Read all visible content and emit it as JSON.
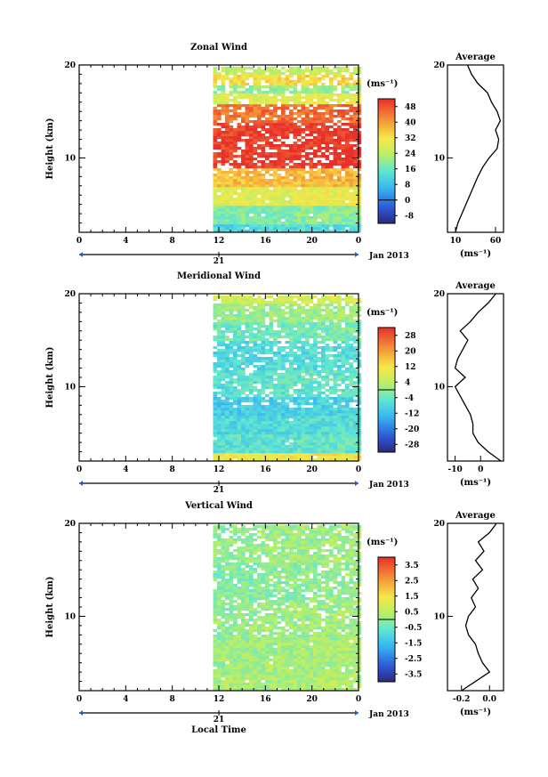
{
  "chart_data": [
    {
      "type": "heatmap",
      "title": "Zonal Wind",
      "ylabel": "Height (km)",
      "unit": "(ms⁻¹)",
      "y_ticks": [
        "10",
        "20"
      ],
      "ylim": [
        2,
        20
      ],
      "x_ticks": [
        "0",
        "4",
        "8",
        "12",
        "16",
        "20",
        "0"
      ],
      "xlim": [
        0,
        24
      ],
      "date_tick": "21",
      "date_label": "Jan 2013",
      "data_start_hour": 11.5,
      "colorbar_ticks": [
        "48",
        "40",
        "32",
        "24",
        "16",
        "8",
        "0",
        "-8"
      ],
      "colorbar_range": [
        -12,
        52
      ],
      "bands": [
        {
          "y0": 2,
          "y1": 3,
          "value": 12
        },
        {
          "y0": 3,
          "y1": 5,
          "value": 18
        },
        {
          "y0": 5,
          "y1": 7,
          "value": 28
        },
        {
          "y0": 7,
          "y1": 9,
          "value": 36
        },
        {
          "y0": 9,
          "y1": 14,
          "value": 50
        },
        {
          "y0": 14,
          "y1": 16,
          "value": 44
        },
        {
          "y0": 16,
          "y1": 17,
          "value": 28
        },
        {
          "y0": 17,
          "y1": 18,
          "value": 20
        },
        {
          "y0": 18,
          "y1": 19,
          "value": 32
        },
        {
          "y0": 19,
          "y1": 20,
          "value": 24
        }
      ],
      "profile": {
        "title": "Average",
        "x_ticks": [
          "10",
          "60"
        ],
        "xlim": [
          0,
          70
        ],
        "y_ticks": [
          "10",
          "20"
        ],
        "xlabel": "(ms⁻¹)",
        "points": [
          [
            10,
            2
          ],
          [
            13,
            3
          ],
          [
            18,
            4
          ],
          [
            23,
            5
          ],
          [
            28,
            6
          ],
          [
            33,
            7
          ],
          [
            38,
            8
          ],
          [
            44,
            9
          ],
          [
            52,
            10
          ],
          [
            62,
            11
          ],
          [
            64,
            12
          ],
          [
            60,
            13
          ],
          [
            66,
            14
          ],
          [
            62,
            15
          ],
          [
            55,
            16
          ],
          [
            50,
            17
          ],
          [
            38,
            18
          ],
          [
            30,
            19
          ],
          [
            25,
            20
          ]
        ]
      }
    },
    {
      "type": "heatmap",
      "title": "Meridional Wind",
      "ylabel": "Height (km)",
      "unit": "(ms⁻¹)",
      "y_ticks": [
        "10",
        "20"
      ],
      "ylim": [
        2,
        20
      ],
      "x_ticks": [
        "0",
        "4",
        "8",
        "12",
        "16",
        "20",
        "0"
      ],
      "xlim": [
        0,
        24
      ],
      "date_tick": "21",
      "date_label": "Jan 2013",
      "data_start_hour": 11.5,
      "colorbar_ticks": [
        "28",
        "20",
        "12",
        "4",
        "-4",
        "-12",
        "-20",
        "-28"
      ],
      "colorbar_range": [
        -32,
        32
      ],
      "bands": [
        {
          "y0": 2,
          "y1": 3,
          "value": 10
        },
        {
          "y0": 3,
          "y1": 5,
          "value": -6
        },
        {
          "y0": 5,
          "y1": 7,
          "value": -8
        },
        {
          "y0": 7,
          "y1": 9,
          "value": -10
        },
        {
          "y0": 9,
          "y1": 12,
          "value": -6
        },
        {
          "y0": 12,
          "y1": 15,
          "value": -8
        },
        {
          "y0": 15,
          "y1": 17,
          "value": -4
        },
        {
          "y0": 17,
          "y1": 19,
          "value": 0
        },
        {
          "y0": 19,
          "y1": 20,
          "value": 6
        }
      ],
      "profile": {
        "title": "Average",
        "x_ticks": [
          "-10",
          "0"
        ],
        "xlim": [
          -13,
          9
        ],
        "y_ticks": [
          "10",
          "20"
        ],
        "xlabel": "(ms⁻¹)",
        "points": [
          [
            8,
            2
          ],
          [
            3,
            3
          ],
          [
            -1,
            4
          ],
          [
            -3,
            5
          ],
          [
            -3,
            6
          ],
          [
            -4,
            7
          ],
          [
            -6,
            8
          ],
          [
            -8,
            9
          ],
          [
            -10,
            10
          ],
          [
            -6,
            11
          ],
          [
            -10,
            12
          ],
          [
            -9,
            13
          ],
          [
            -7,
            14
          ],
          [
            -5,
            15
          ],
          [
            -8,
            16
          ],
          [
            -4,
            17
          ],
          [
            -1,
            18
          ],
          [
            3,
            19
          ],
          [
            6,
            20
          ]
        ]
      }
    },
    {
      "type": "heatmap",
      "title": "Vertical Wind",
      "ylabel": "Height (km)",
      "unit": "(ms⁻¹)",
      "y_ticks": [
        "10",
        "20"
      ],
      "ylim": [
        2,
        20
      ],
      "x_ticks": [
        "0",
        "4",
        "8",
        "12",
        "16",
        "20",
        "0"
      ],
      "xlim": [
        0,
        24
      ],
      "xlabel": "Local Time",
      "date_tick": "21",
      "date_label": "Jan 2013",
      "data_start_hour": 11.5,
      "colorbar_ticks": [
        "3.5",
        "2.5",
        "1.5",
        "0.5",
        "-0.5",
        "-1.5",
        "-2.5",
        "-3.5"
      ],
      "colorbar_range": [
        -4,
        4
      ],
      "bands": [
        {
          "y0": 2,
          "y1": 4,
          "value": 0.2
        },
        {
          "y0": 4,
          "y1": 8,
          "value": 0.1
        },
        {
          "y0": 8,
          "y1": 12,
          "value": 0.0
        },
        {
          "y0": 12,
          "y1": 16,
          "value": -0.2
        },
        {
          "y0": 16,
          "y1": 20,
          "value": 0.0
        }
      ],
      "profile": {
        "title": "Average",
        "x_ticks": [
          "-0.2",
          "0.0"
        ],
        "xlim": [
          -0.3,
          0.1
        ],
        "y_ticks": [
          "10",
          "20"
        ],
        "xlabel": "(ms⁻¹)",
        "points": [
          [
            -0.2,
            2
          ],
          [
            -0.1,
            3
          ],
          [
            0.0,
            4
          ],
          [
            -0.05,
            5
          ],
          [
            -0.08,
            6
          ],
          [
            -0.1,
            7
          ],
          [
            -0.15,
            8
          ],
          [
            -0.17,
            9
          ],
          [
            -0.15,
            10
          ],
          [
            -0.1,
            11
          ],
          [
            -0.13,
            12
          ],
          [
            -0.08,
            13
          ],
          [
            -0.12,
            14
          ],
          [
            -0.05,
            15
          ],
          [
            -0.1,
            16
          ],
          [
            -0.04,
            17
          ],
          [
            -0.08,
            18
          ],
          [
            0.0,
            19
          ],
          [
            0.05,
            20
          ]
        ]
      }
    }
  ]
}
